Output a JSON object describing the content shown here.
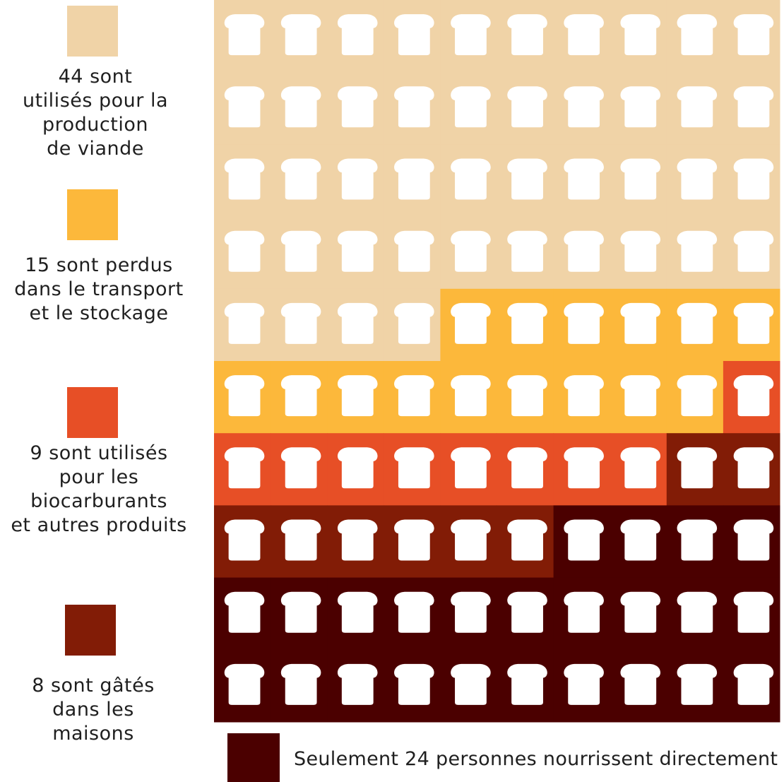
{
  "colors": {
    "meat": "#f0d3a7",
    "transport": "#fcb83b",
    "biofuel": "#e74f26",
    "households": "#821c06",
    "direct": "#4b0000",
    "bread": "#ffffff"
  },
  "chart_data": {
    "type": "waffle",
    "grid": {
      "rows": 10,
      "columns": 10,
      "total": 100
    },
    "icon": "bread-slice-icon",
    "categories": [
      {
        "key": "meat",
        "value": 44,
        "label": "44 sont\nutilisés pour la\nproduction\nde viande",
        "color": "#f0d3a7"
      },
      {
        "key": "transport",
        "value": 15,
        "label": "15 sont perdus\ndans le transport\net le stockage",
        "color": "#fcb83b"
      },
      {
        "key": "biofuel",
        "value": 9,
        "label": "9 sont utilisés\npour les\nbiocarburants\net autres produits",
        "color": "#e74f26"
      },
      {
        "key": "households",
        "value": 8,
        "label": "8 sont gâtés\ndans les\nmaisons",
        "color": "#821c06"
      },
      {
        "key": "direct",
        "value": 24,
        "label": "Seulement 24 personnes nourrissent directement",
        "color": "#4b0000"
      }
    ]
  },
  "legend": {
    "meat": "44 sont\nutilisés pour la\nproduction\nde viande",
    "transport": "15 sont perdus\ndans le transport\net le stockage",
    "biofuel": "9 sont utilisés\npour les\nbiocarburants\net autres produits",
    "households": "8 sont gâtés\ndans les\nmaisons",
    "direct": "Seulement 24 personnes nourrissent directement"
  }
}
